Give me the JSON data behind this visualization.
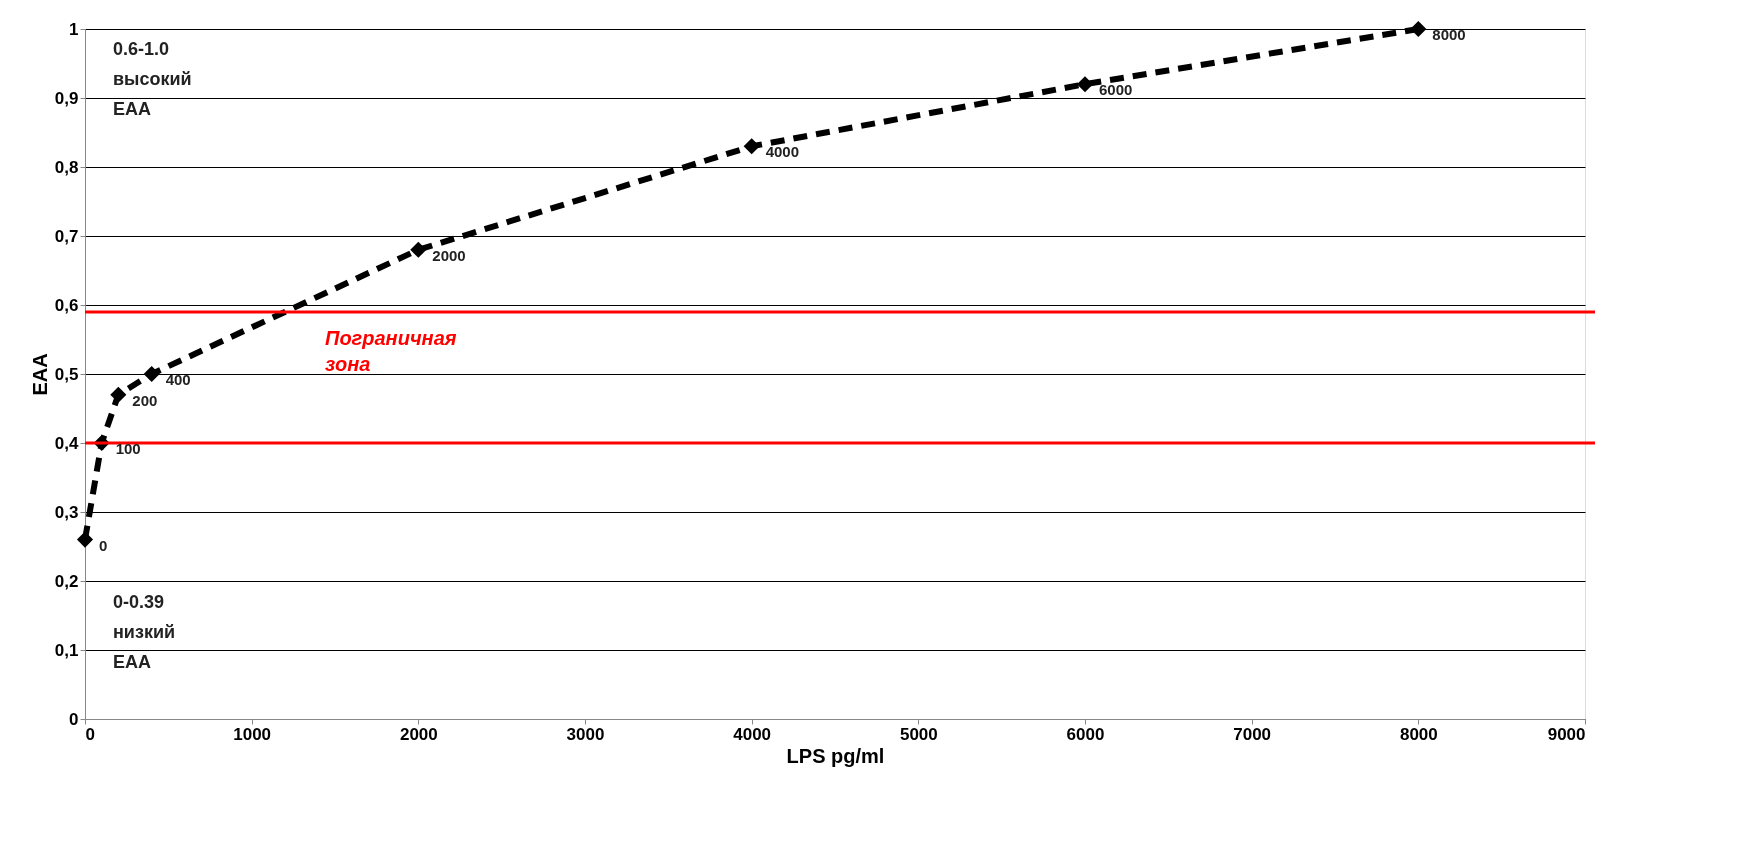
{
  "chart_data": {
    "type": "line",
    "xlabel": "LPS pg/ml",
    "ylabel": "EAA",
    "x": [
      0,
      100,
      200,
      400,
      2000,
      4000,
      6000,
      8000
    ],
    "series": [
      {
        "color": "#000000",
        "values": [
          0.26,
          0.4,
          0.47,
          0.5,
          0.68,
          0.83,
          0.92,
          1.0
        ]
      }
    ],
    "xlim": [
      0,
      9000
    ],
    "xticks": [
      0,
      1000,
      2000,
      3000,
      4000,
      5000,
      6000,
      7000,
      8000,
      9000
    ],
    "ylim": [
      0,
      1
    ],
    "yticks": [
      0,
      {
        "value": 0.1,
        "label": "0,1"
      },
      {
        "value": 0.2,
        "label": "0,2"
      },
      {
        "value": 0.3,
        "label": "0,3"
      },
      {
        "value": 0.4,
        "label": "0,4"
      },
      {
        "value": 0.5,
        "label": "0,5"
      },
      {
        "value": 0.6,
        "label": "0,6"
      },
      {
        "value": 0.7,
        "label": "0,7"
      },
      {
        "value": 0.8,
        "label": "0,8"
      },
      {
        "value": 0.9,
        "label": "0,9"
      },
      1
    ],
    "grid": "y",
    "marker": "diamond",
    "line_style": "dashed",
    "ref_lines": [
      {
        "axis": "y",
        "value": 0.59,
        "color": "#ff0000"
      },
      {
        "axis": "y",
        "value": 0.4,
        "color": "#ff0000"
      }
    ],
    "annotations": [
      {
        "text": "0",
        "x": 0,
        "y": 0.26
      },
      {
        "text": "100",
        "x": 100,
        "y": 0.4
      },
      {
        "text": "200",
        "x": 200,
        "y": 0.47
      },
      {
        "text": "400",
        "x": 400,
        "y": 0.5
      },
      {
        "text": "2000",
        "x": 2000,
        "y": 0.68
      },
      {
        "text": "4000",
        "x": 4000,
        "y": 0.83
      },
      {
        "text": "6000",
        "x": 6000,
        "y": 0.92
      },
      {
        "text": "8000",
        "x": 8000,
        "y": 1.0
      },
      "0.6-1.0\nвысокий\nEAA",
      "Пограничная\nзона",
      "0-0.39\nнизкий\nEAA"
    ]
  }
}
